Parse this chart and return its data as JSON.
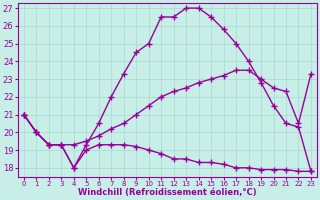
{
  "xlabel": "Windchill (Refroidissement éolien,°C)",
  "xlim": [
    -0.5,
    23.5
  ],
  "ylim": [
    17.5,
    27.3
  ],
  "xticks": [
    0,
    1,
    2,
    3,
    4,
    5,
    6,
    7,
    8,
    9,
    10,
    11,
    12,
    13,
    14,
    15,
    16,
    17,
    18,
    19,
    20,
    21,
    22,
    23
  ],
  "yticks": [
    18,
    19,
    20,
    21,
    22,
    23,
    24,
    25,
    26,
    27
  ],
  "bg_color": "#c8eee8",
  "grid_color": "#a8d8d0",
  "line_color": "#990099",
  "line_width": 1.0,
  "marker": "+",
  "marker_size": 4,
  "lines": [
    {
      "comment": "main arc line - rises steeply to peak ~27 at x=14, then drops sharply",
      "x": [
        0,
        1,
        2,
        3,
        4,
        5,
        6,
        7,
        8,
        9,
        10,
        11,
        12,
        13,
        14,
        15,
        16,
        17,
        18,
        19,
        20,
        21,
        22,
        23
      ],
      "y": [
        21.0,
        20.0,
        19.3,
        19.3,
        18.0,
        19.3,
        20.5,
        22.0,
        23.3,
        24.5,
        25.0,
        26.5,
        26.5,
        27.0,
        27.0,
        26.5,
        25.8,
        25.0,
        24.0,
        22.8,
        21.5,
        20.5,
        20.3,
        17.8
      ]
    },
    {
      "comment": "gradual rising line from x=4 to x=20, then drops",
      "x": [
        0,
        1,
        2,
        3,
        4,
        5,
        6,
        7,
        8,
        9,
        10,
        11,
        12,
        13,
        14,
        15,
        16,
        17,
        18,
        19,
        20,
        21,
        22,
        23
      ],
      "y": [
        21.0,
        20.0,
        19.3,
        19.3,
        19.3,
        19.5,
        19.8,
        20.2,
        20.5,
        21.0,
        21.5,
        22.0,
        22.3,
        22.5,
        22.8,
        23.0,
        23.2,
        23.5,
        23.5,
        23.0,
        22.5,
        22.3,
        20.5,
        23.3
      ]
    },
    {
      "comment": "flat/declining line - stays low from x=4 to x=23",
      "x": [
        0,
        1,
        2,
        3,
        4,
        5,
        6,
        7,
        8,
        9,
        10,
        11,
        12,
        13,
        14,
        15,
        16,
        17,
        18,
        19,
        20,
        21,
        22,
        23
      ],
      "y": [
        21.0,
        20.0,
        19.3,
        19.3,
        18.0,
        19.0,
        19.3,
        19.3,
        19.3,
        19.2,
        19.0,
        18.8,
        18.5,
        18.5,
        18.3,
        18.3,
        18.2,
        18.0,
        18.0,
        17.9,
        17.9,
        17.9,
        17.8,
        17.8
      ]
    }
  ]
}
